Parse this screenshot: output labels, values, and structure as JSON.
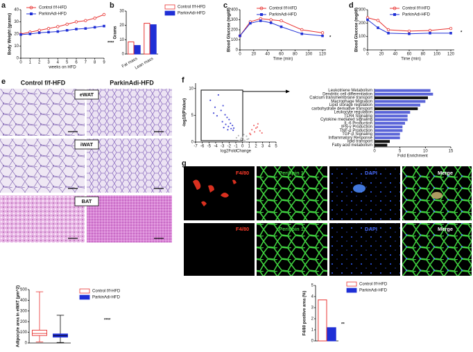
{
  "panel_letters": [
    "a",
    "b",
    "c",
    "d",
    "e",
    "f",
    "g"
  ],
  "histology": {
    "columns": [
      "Control f/f-HFD",
      "ParkinAdi-HFD"
    ],
    "tissues": [
      "eWAT",
      "iWAT",
      "BAT"
    ]
  },
  "microscopy": {
    "channels": [
      "F4/80",
      "Perilipin 1",
      "DAPI",
      "Merge"
    ]
  },
  "chart_data": [
    {
      "type": "line",
      "y_label": "Body Weight (grams)",
      "x_label": "weeks on HFD",
      "x": [
        0,
        1,
        2,
        3,
        4,
        5,
        6,
        7,
        8,
        9
      ],
      "xlim": [
        0,
        9
      ],
      "xticks": [
        0,
        1,
        2,
        3,
        4,
        5,
        6,
        7,
        8,
        9
      ],
      "ylim": [
        0,
        40
      ],
      "yticks": [
        0,
        10,
        20,
        30,
        40
      ],
      "annotation": "****",
      "series": [
        {
          "name": "Control f/f-HFD",
          "color": "#e8312f",
          "marker": "circle",
          "values": [
            20,
            21.5,
            23,
            24.5,
            26,
            28,
            30,
            31,
            33,
            36
          ]
        },
        {
          "name": "ParkinAdi-HFD",
          "color": "#1f2fd6",
          "marker": "square",
          "values": [
            19.5,
            20,
            21,
            21.5,
            22,
            23,
            24,
            24.5,
            25.5,
            26.5
          ]
        }
      ]
    },
    {
      "type": "bar",
      "y_label": "Grams",
      "categories": [
        "Fat mass",
        "Lean mass"
      ],
      "ylim": [
        0,
        30
      ],
      "yticks": [
        0,
        10,
        20,
        30
      ],
      "series": [
        {
          "name": "Control f/f-HFD",
          "color": "#e8312f",
          "filled": false,
          "values": [
            8.5,
            21.5
          ]
        },
        {
          "name": "ParkinAdi-HFD",
          "color": "#1f2fd6",
          "filled": true,
          "values": [
            6,
            20.5
          ]
        }
      ]
    },
    {
      "type": "line",
      "y_label": "Blood Glucose (mg/dl)",
      "x_label": "Time (min)",
      "x": [
        0,
        15,
        30,
        45,
        60,
        90,
        120
      ],
      "xlim": [
        0,
        125
      ],
      "xticks": [
        0,
        20,
        40,
        60,
        80,
        100,
        120
      ],
      "ylim": [
        0,
        400
      ],
      "yticks": [
        0,
        100,
        200,
        300,
        400
      ],
      "annotation": "*",
      "series": [
        {
          "name": "Control f/f-HFD",
          "color": "#e8312f",
          "marker": "circle",
          "values": [
            140,
            280,
            310,
            300,
            290,
            200,
            170
          ]
        },
        {
          "name": "ParkinAdi-HFD",
          "color": "#1f2fd6",
          "marker": "square",
          "values": [
            140,
            265,
            290,
            270,
            230,
            160,
            140
          ]
        }
      ]
    },
    {
      "type": "line",
      "y_label": "Blood Glucose (mg/dl)",
      "x_label": "Time (min)",
      "x": [
        0,
        15,
        30,
        60,
        90,
        120
      ],
      "xlim": [
        0,
        125
      ],
      "xticks": [
        0,
        20,
        40,
        60,
        80,
        100,
        120
      ],
      "ylim": [
        0,
        300
      ],
      "yticks": [
        0,
        100,
        200,
        300
      ],
      "annotation": "*",
      "series": [
        {
          "name": "Control f/f-HFD",
          "color": "#e8312f",
          "marker": "circle",
          "values": [
            240,
            220,
            150,
            140,
            145,
            160
          ]
        },
        {
          "name": "ParkinAdi-HFD",
          "color": "#1f2fd6",
          "marker": "square",
          "values": [
            225,
            165,
            125,
            120,
            125,
            125
          ]
        }
      ]
    },
    {
      "type": "box",
      "y_label": "Adipocyte area in eWAT (µm^2)",
      "ylim": [
        0,
        500
      ],
      "yticks": [
        0,
        100,
        200,
        300,
        400,
        500
      ],
      "annotation": "****",
      "series": [
        {
          "name": "Control f/f-HFD",
          "color": "#e8312f",
          "filled": false,
          "min": 10,
          "q1": 70,
          "median": 90,
          "q3": 120,
          "max": 480
        },
        {
          "name": "ParkinAdi-HFD",
          "color": "#1f2fd6",
          "filled": true,
          "min": 5,
          "q1": 55,
          "median": 70,
          "q3": 85,
          "max": 260
        }
      ]
    },
    {
      "type": "scatter",
      "y_label": "-log10(PValue)",
      "x_label": "log2FoldChange",
      "xlim": [
        -7,
        5
      ],
      "xticks": [
        -7,
        -6,
        -5,
        -4,
        -3,
        -2,
        -1,
        0,
        1,
        2,
        3,
        4,
        5
      ],
      "ylim": [
        0,
        11
      ],
      "yticks": [
        0,
        5,
        10
      ],
      "series": [
        {
          "color": "#4a4fd8",
          "x": [
            -4.8,
            -4.1,
            -3.6,
            -3.2,
            -2.9,
            -2.6,
            -2.3,
            -2.0,
            -1.8,
            -1.5,
            -1.3,
            -3.8,
            -3.0,
            -2.5,
            -2.1,
            -1.7,
            -1.4,
            -4.3,
            -2.8,
            -2.2
          ],
          "values": [
            7.8,
            6.5,
            8.8,
            5.9,
            6.8,
            5.1,
            4.6,
            4.2,
            3.5,
            3.1,
            2.6,
            4.9,
            3.8,
            3.3,
            2.9,
            2.5,
            2.2,
            5.4,
            2.7,
            2.3
          ]
        },
        {
          "color": "#f07070",
          "x": [
            1.1,
            1.4,
            1.7,
            2.0,
            2.3,
            2.6,
            1.2,
            1.8,
            2.2,
            2.9
          ],
          "values": [
            1.6,
            2.3,
            3.1,
            2.6,
            3.4,
            2.1,
            1.4,
            1.9,
            2.8,
            1.7
          ]
        },
        {
          "color": "#b8b8b8",
          "x": [
            -0.9,
            -0.6,
            -0.3,
            0,
            0.3,
            0.6,
            0.9,
            -0.5,
            0.2,
            0.7,
            -0.2,
            0.4
          ],
          "values": [
            0.8,
            1.2,
            0.4,
            0.9,
            0.3,
            1.1,
            0.6,
            0.2,
            1.4,
            0.5,
            0.7,
            0.1
          ]
        }
      ]
    },
    {
      "type": "hbar",
      "x_label": "Fold Enrichment",
      "xlim": [
        0,
        15
      ],
      "xticks": [
        0,
        5,
        10,
        15
      ],
      "categories": [
        "Leukotriene Metabolism",
        "Dendritic cell differentiation",
        "Calcium transmembrane transport",
        "Macrophage Migration",
        "Lipid storage regulation",
        "carbohydrate derivative transport",
        "Leukocyte regulation",
        "TLR4 Signaling",
        "Cytokine mediated signaling",
        "IL-6 Production",
        "IFN-γ Production",
        "TNF-α Production",
        "TGF-β Signaling",
        "Inflammatory Response",
        "lipid transport",
        "Fatty acid metabolism"
      ],
      "values": [
        11,
        11.5,
        10.5,
        10,
        9,
        8.5,
        7,
        6.5,
        6.5,
        6,
        5.5,
        5.5,
        5,
        5,
        3,
        2.5
      ],
      "colors": [
        "#5a64d8",
        "#5a64d8",
        "#111111",
        "#5a64d8",
        "#5a64d8",
        "#111111",
        "#5a64d8",
        "#5a64d8",
        "#5a64d8",
        "#5a64d8",
        "#5a64d8",
        "#5a64d8",
        "#5a64d8",
        "#5a64d8",
        "#111111",
        "#111111"
      ]
    },
    {
      "type": "bar",
      "y_label": "F4/80 positive area (%)",
      "ylim": [
        0,
        5
      ],
      "yticks": [
        0,
        1,
        2,
        3,
        4,
        5
      ],
      "annotation": "**",
      "series": [
        {
          "name": "Control f/f-HFD",
          "color": "#e8312f",
          "filled": false,
          "values": [
            3.7
          ]
        },
        {
          "name": "ParkinAdi-HFD",
          "color": "#1f2fd6",
          "filled": true,
          "values": [
            1.2
          ]
        }
      ]
    }
  ]
}
